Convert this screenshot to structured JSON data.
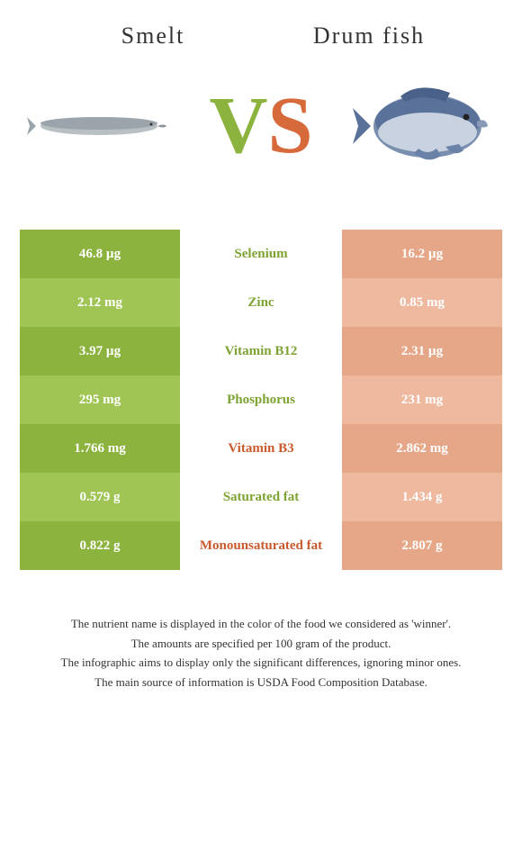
{
  "titles": {
    "left": "Smelt",
    "right": "Drum fish"
  },
  "vs": {
    "v": "V",
    "s": "S"
  },
  "colors": {
    "green_dark": "#8db33f",
    "green_light": "#a0c554",
    "orange_dark": "#d66a3a",
    "orange_light": "#e6a788",
    "text_green": "#7da332",
    "text_orange": "#c95a2e"
  },
  "rows": [
    {
      "left": "46.8 µg",
      "mid": "Selenium",
      "right": "16.2 µg",
      "leftBg": "#8db33f",
      "rightBg": "#e6a788",
      "midColor": "#7da332"
    },
    {
      "left": "2.12 mg",
      "mid": "Zinc",
      "right": "0.85 mg",
      "leftBg": "#a0c554",
      "rightBg": "#eeb99f",
      "midColor": "#7da332"
    },
    {
      "left": "3.97 µg",
      "mid": "Vitamin B12",
      "right": "2.31 µg",
      "leftBg": "#8db33f",
      "rightBg": "#e6a788",
      "midColor": "#7da332"
    },
    {
      "left": "295 mg",
      "mid": "Phosphorus",
      "right": "231 mg",
      "leftBg": "#a0c554",
      "rightBg": "#eeb99f",
      "midColor": "#7da332"
    },
    {
      "left": "1.766 mg",
      "mid": "Vitamin B3",
      "right": "2.862 mg",
      "leftBg": "#8db33f",
      "rightBg": "#e6a788",
      "midColor": "#c95a2e"
    },
    {
      "left": "0.579 g",
      "mid": "Saturated fat",
      "right": "1.434 g",
      "leftBg": "#a0c554",
      "rightBg": "#eeb99f",
      "midColor": "#7da332"
    },
    {
      "left": "0.822 g",
      "mid": "Monounsaturated fat",
      "right": "2.807 g",
      "leftBg": "#8db33f",
      "rightBg": "#e6a788",
      "midColor": "#c95a2e"
    }
  ],
  "footer": [
    "The nutrient name is displayed in the color of the food we considered as 'winner'.",
    "The amounts are specified per 100 gram of the product.",
    "The infographic aims to display only the significant differences, ignoring minor ones.",
    "The main source of information is USDA Food Composition Database."
  ]
}
